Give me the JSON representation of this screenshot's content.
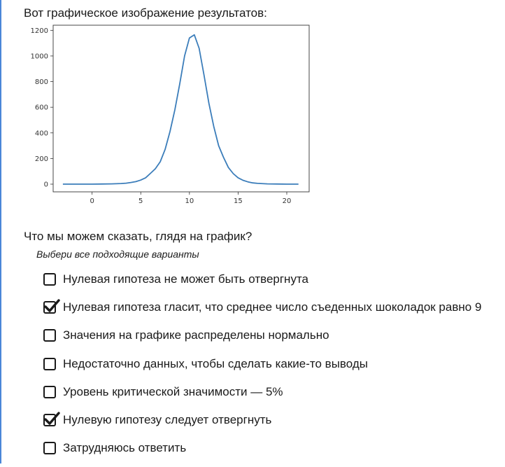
{
  "intro_text": "Вот графическое изображение результатов:",
  "question_text": "Что мы можем сказать, глядя на график?",
  "hint_text": "Выбери все подходящие варианты",
  "options": [
    {
      "label": "Нулевая гипотеза не может быть отвергнута",
      "checked": false
    },
    {
      "label": "Нулевая гипотеза гласит, что среднее число съеденных шоколадок равно 9",
      "checked": true
    },
    {
      "label": "Значения на графике распределены нормально",
      "checked": false
    },
    {
      "label": "Недостаточно данных, чтобы сделать какие-то выводы",
      "checked": false
    },
    {
      "label": "Уровень критической значимости — 5%",
      "checked": false
    },
    {
      "label": "Нулевую гипотезу следует отвергнуть",
      "checked": true
    },
    {
      "label": "Затрудняюсь ответить",
      "checked": false
    }
  ],
  "colors": {
    "line": "#3b7dba",
    "accent_border": "#4a86d8"
  },
  "chart_data": {
    "type": "line",
    "title": "",
    "xlabel": "",
    "ylabel": "",
    "xlim": [
      -4,
      22.3
    ],
    "ylim": [
      -60,
      1240
    ],
    "xticks": [
      "0",
      "5",
      "10",
      "15",
      "20"
    ],
    "xtick_values": [
      0,
      5,
      10,
      15,
      20
    ],
    "yticks": [
      "0",
      "200",
      "400",
      "600",
      "800",
      "1000",
      "1200"
    ],
    "ytick_values": [
      0,
      200,
      400,
      600,
      800,
      1000,
      1200
    ],
    "grid": false,
    "series": [
      {
        "x": [
          -3,
          -2,
          -1,
          0,
          1,
          2,
          3,
          3.5,
          4,
          4.5,
          5,
          5.5,
          6,
          6.5,
          7,
          7.5,
          8,
          8.5,
          9,
          9.5,
          10,
          10.5,
          11,
          11.5,
          12,
          12.5,
          13,
          13.5,
          14,
          14.5,
          15,
          15.5,
          16,
          16.5,
          17,
          18,
          19,
          20,
          21.2
        ],
        "y": [
          0,
          0,
          0,
          0,
          1,
          2,
          5,
          8,
          13,
          20,
          32,
          50,
          85,
          120,
          175,
          270,
          410,
          580,
          780,
          1000,
          1140,
          1165,
          1060,
          850,
          630,
          450,
          300,
          210,
          130,
          82,
          50,
          30,
          18,
          10,
          6,
          2,
          1,
          0,
          0
        ]
      }
    ]
  }
}
